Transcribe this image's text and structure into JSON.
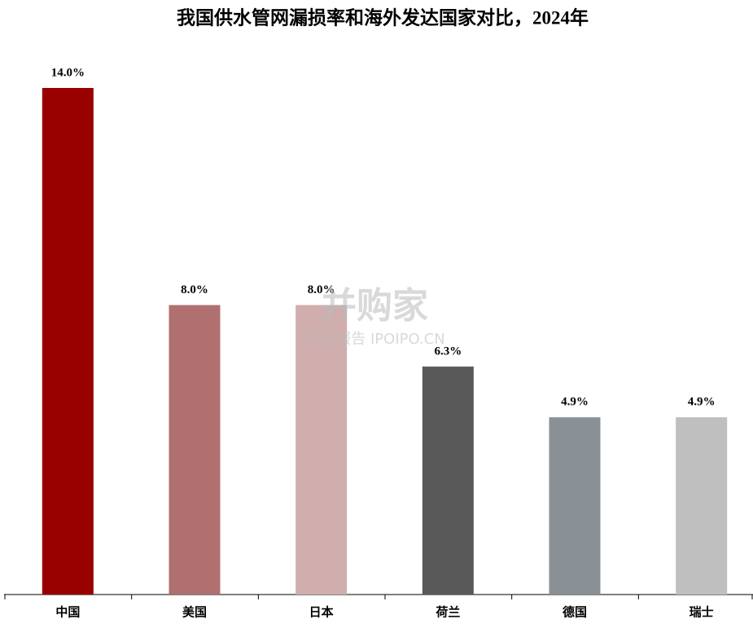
{
  "chart_data": {
    "type": "bar",
    "title": "我国供水管网漏损率和海外发达国家对比，2024年",
    "categories": [
      "中国",
      "美国",
      "日本",
      "荷兰",
      "德国",
      "瑞士"
    ],
    "values": [
      14.0,
      8.0,
      8.0,
      6.3,
      4.9,
      4.9
    ],
    "value_labels": [
      "14.0%",
      "8.0%",
      "8.0%",
      "6.3%",
      "4.9%",
      "4.9%"
    ],
    "colors": [
      "#990000",
      "#b07070",
      "#d0aeae",
      "#595959",
      "#8a9196",
      "#bfbfbf"
    ],
    "ylim": [
      0,
      14
    ],
    "watermark": [
      "并购家",
      "行业报告 IPOIPO.CN"
    ]
  }
}
